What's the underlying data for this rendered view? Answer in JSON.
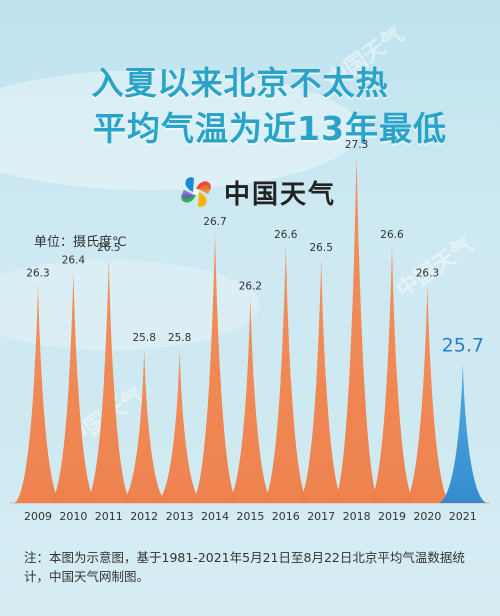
{
  "title_line1": "入夏以来北京不太热",
  "title_line2": "平均气温为近13年最低",
  "brand": "中国天气",
  "unit": "单位：摄氏度℃",
  "note": "注：本图为示意图，基于1981-2021年5月21日至8月22日北京平均气温数据统计，中国天气网制图。",
  "watermark": "中国天气",
  "colors": {
    "orange": "#f28a55",
    "blue": "#3f9bd8",
    "title": "#2aa3c9",
    "highlight_label": "#2a7fc4"
  },
  "chart_data": {
    "type": "area",
    "title": "",
    "xlabel": "",
    "ylabel": "摄氏度℃",
    "x": [
      "2009",
      "2010",
      "2011",
      "2012",
      "2013",
      "2014",
      "2015",
      "2016",
      "2017",
      "2018",
      "2019",
      "2020",
      "2021"
    ],
    "series": [
      {
        "values": [
          26.3,
          26.4,
          26.5,
          25.8,
          25.8,
          26.7,
          26.2,
          26.6,
          26.5,
          27.3,
          26.6,
          26.3,
          25.7
        ]
      }
    ],
    "highlight": "2021",
    "ylim": [
      24.6,
      27.3
    ],
    "grid": false
  }
}
